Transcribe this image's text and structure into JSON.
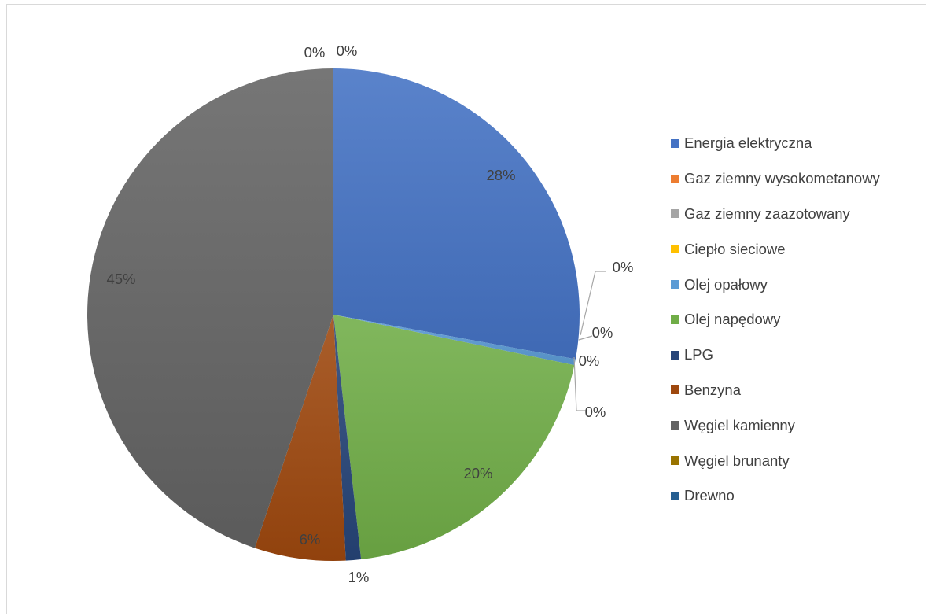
{
  "caption": "",
  "colors": {
    "border": "#d9d9d9",
    "label_text": "#404040",
    "leader_line": "#a6a6a6"
  },
  "chart_data": {
    "type": "pie",
    "title": "",
    "legend_position": "right",
    "slices": [
      {
        "name": "Energia elektryczna",
        "value": 28,
        "label": "28%",
        "color": "#4472c4"
      },
      {
        "name": "Gaz ziemny wysokometanowy",
        "value": 0,
        "label": "0%",
        "color": "#ed7d31"
      },
      {
        "name": "Gaz ziemny zaazotowany",
        "value": 0,
        "label": "0%",
        "color": "#a5a5a5"
      },
      {
        "name": "Ciepło sieciowe",
        "value": 0,
        "label": "0%",
        "color": "#ffc000"
      },
      {
        "name": "Olej opałowy",
        "value": 0.4,
        "label": "0%",
        "color": "#5b9bd5"
      },
      {
        "name": "Olej napędowy",
        "value": 20,
        "label": "20%",
        "color": "#70ad47"
      },
      {
        "name": "LPG",
        "value": 1,
        "label": "1%",
        "color": "#264478"
      },
      {
        "name": "Benzyna",
        "value": 6,
        "label": "6%",
        "color": "#9e480e"
      },
      {
        "name": "Węgiel kamienny",
        "value": 45,
        "label": "45%",
        "color": "#636363"
      },
      {
        "name": "Węgiel brunanty",
        "value": 0,
        "label": "0%",
        "color": "#997300"
      },
      {
        "name": "Drewno",
        "value": 0,
        "label": "0%",
        "color": "#255e91"
      }
    ]
  }
}
